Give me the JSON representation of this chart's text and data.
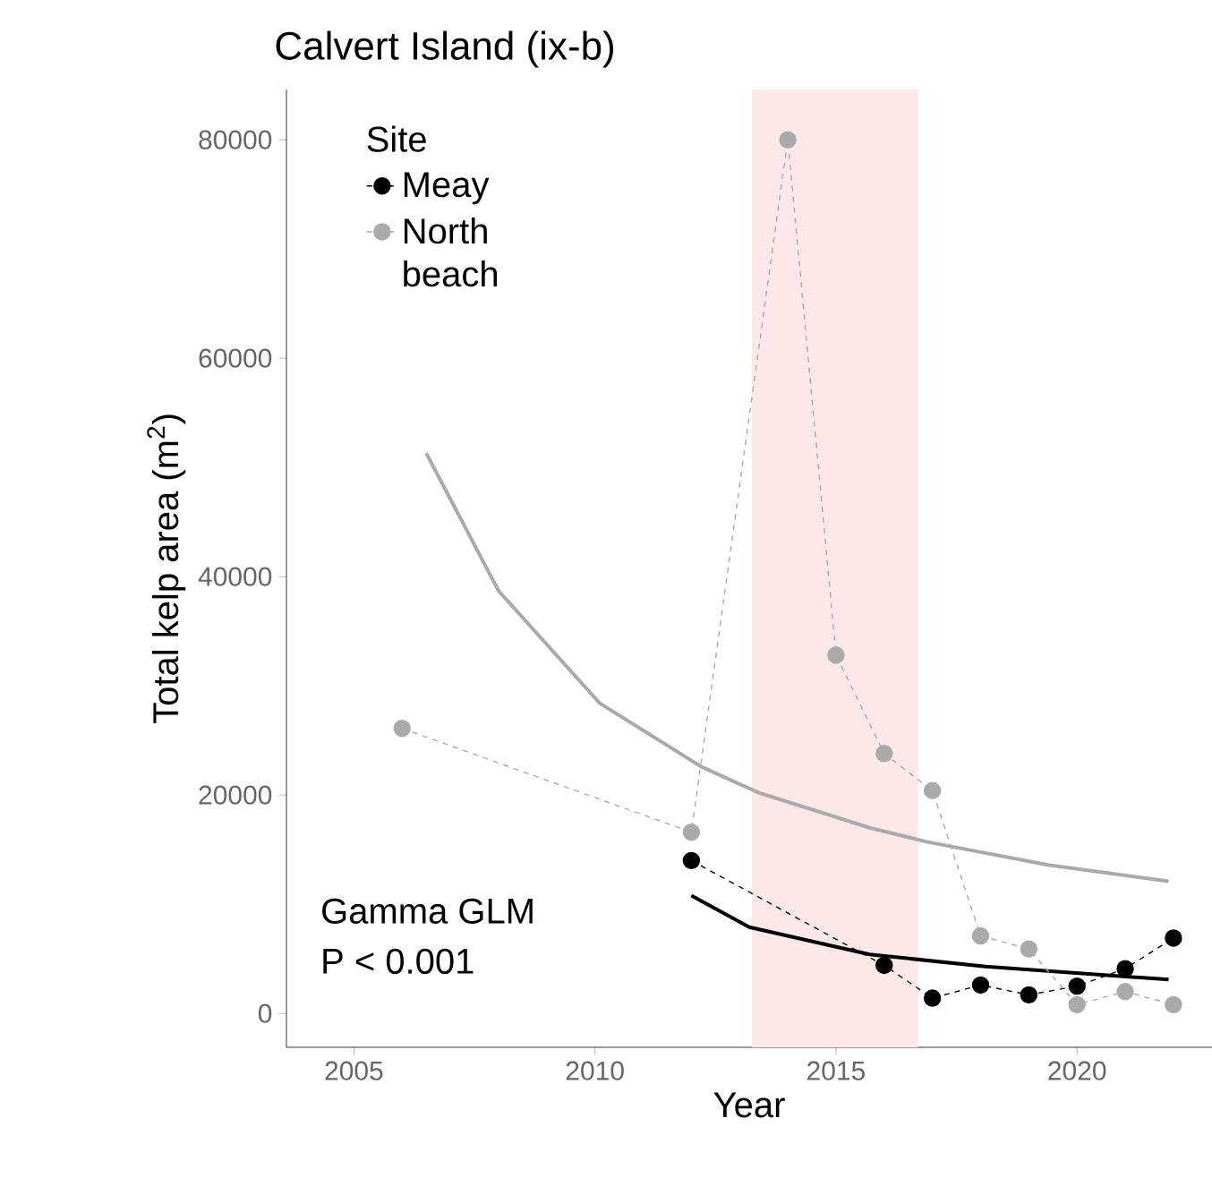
{
  "chart_data": {
    "type": "line",
    "title": "Calvert Island (ix-b)",
    "xlabel": "Year",
    "ylabel": "Total kelp area (m$^{2}$)",
    "legend_title": "Site",
    "x": [
      2012,
      2016,
      2017,
      2018,
      2019,
      2020,
      2021,
      2022
    ],
    "series": [
      {
        "name": "Meay",
        "color": "#000000",
        "marker": "circle",
        "line_style": "dashed",
        "values": [
          14000,
          4400,
          1400,
          2600,
          1700,
          2500,
          4100,
          6900
        ]
      },
      {
        "name": "North beach",
        "color": "#aaaaaa",
        "marker": "circle",
        "line_style": "dashed",
        "x": [
          2006,
          2012,
          2014,
          2015,
          2016,
          2017,
          2018,
          2019,
          2020,
          2021,
          2022
        ],
        "values": [
          26100,
          16600,
          80000,
          32800,
          23800,
          20400,
          7100,
          5900,
          800,
          2000,
          800
        ]
      },
      {
        "color": "#000000",
        "marker": "none",
        "line_style": "solid",
        "x": [
          2012.0,
          2013.2,
          2015.7,
          2018.1,
          2021.9
        ],
        "values": [
          10800,
          7900,
          5400,
          4300,
          3100
        ]
      },
      {
        "color": "#aaaaaa",
        "marker": "none",
        "line_style": "solid",
        "x": [
          2006.5,
          2008.0,
          2010.1,
          2012.2,
          2013.4,
          2015.7,
          2016.9,
          2019.4,
          2021.9
        ],
        "values": [
          51300,
          38700,
          28400,
          22600,
          20200,
          17000,
          15700,
          13600,
          12100
        ]
      }
    ],
    "bands": [
      {
        "axis": "x",
        "from": 2013.25,
        "to": 2016.7,
        "color": "#fde8e8"
      }
    ],
    "annotations": [
      "Gamma GLM",
      "P < 0.001"
    ],
    "xlim": [
      2003.6,
      2022.8
    ],
    "ylim": [
      -3100,
      84600
    ],
    "xticks": [
      2005,
      2010,
      2015,
      2020
    ],
    "yticks": [
      0,
      20000,
      40000,
      60000,
      80000
    ],
    "grid": false,
    "legend": "top left"
  }
}
